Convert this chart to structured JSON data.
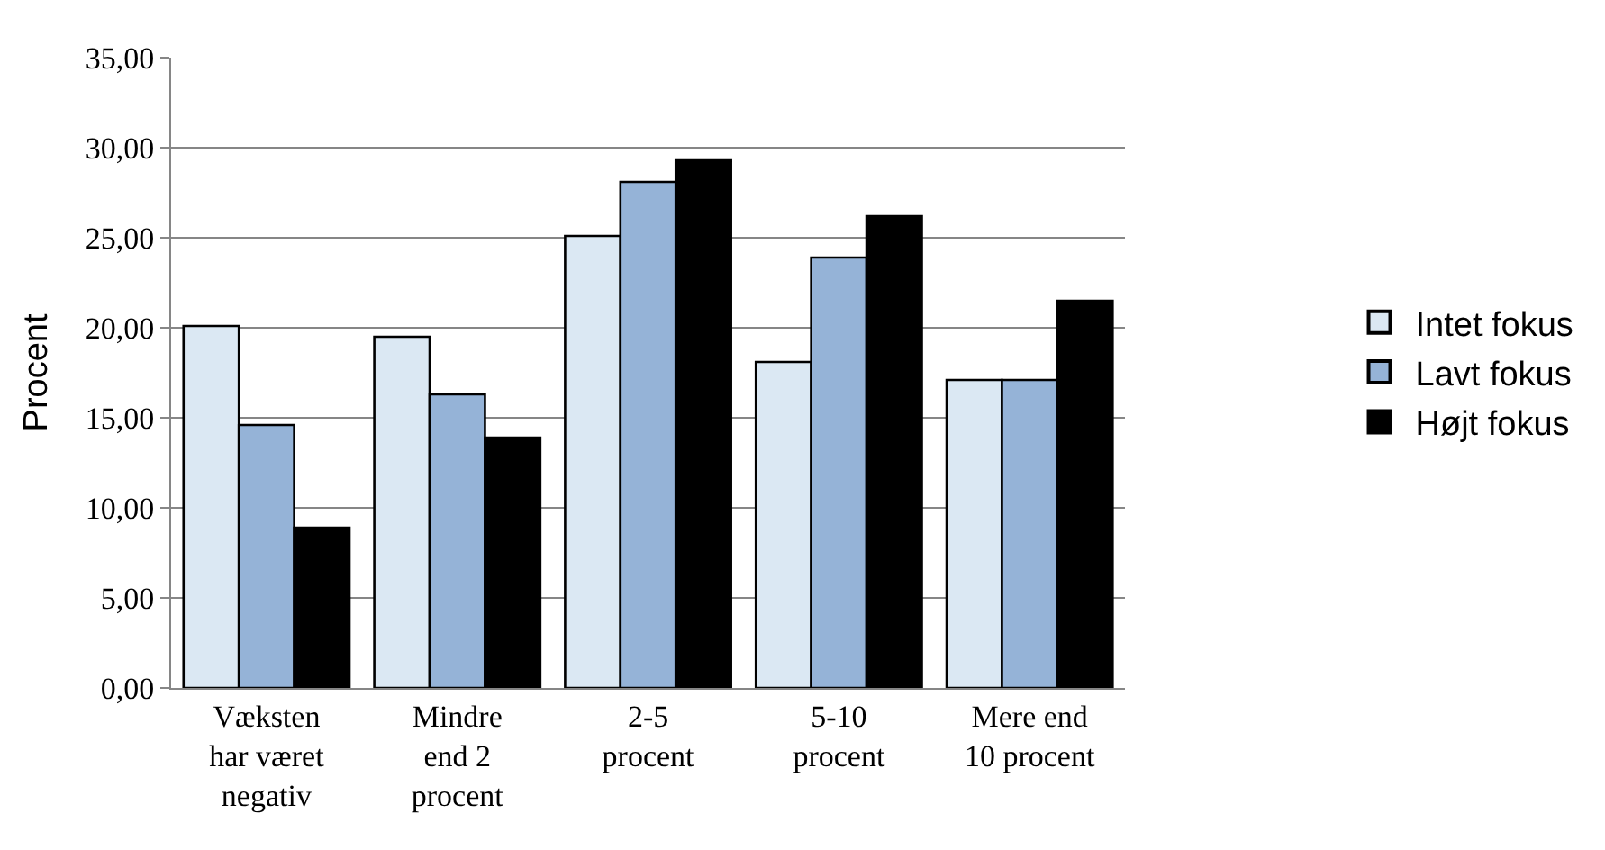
{
  "chart_data": {
    "type": "bar",
    "ylabel": "Procent",
    "categories": [
      "Væksten\nhar været\nnegativ",
      "Mindre\nend 2\nprocent",
      "2-5\nprocent",
      "5-10\nprocent",
      "Mere end\n10 procent"
    ],
    "series": [
      {
        "name": "Intet fokus",
        "color": "#dbe8f3",
        "values": [
          20.1,
          19.5,
          25.1,
          18.1,
          17.1
        ]
      },
      {
        "name": "Lavt fokus",
        "color": "#95b3d7",
        "values": [
          14.6,
          16.3,
          28.1,
          23.9,
          17.1
        ]
      },
      {
        "name": "Højt fokus",
        "color": "#000000",
        "values": [
          8.9,
          13.9,
          29.3,
          26.2,
          21.5
        ]
      }
    ],
    "ylim": [
      0,
      35
    ],
    "yticks": [
      {
        "value": 0,
        "label": "0,00"
      },
      {
        "value": 5,
        "label": "5,00"
      },
      {
        "value": 10,
        "label": "10,00"
      },
      {
        "value": 15,
        "label": "15,00"
      },
      {
        "value": 20,
        "label": "20,00"
      },
      {
        "value": 25,
        "label": "25,00"
      },
      {
        "value": 30,
        "label": "30,00"
      },
      {
        "value": 35,
        "label": "35,00"
      }
    ],
    "grid": "y",
    "legend": "right"
  }
}
